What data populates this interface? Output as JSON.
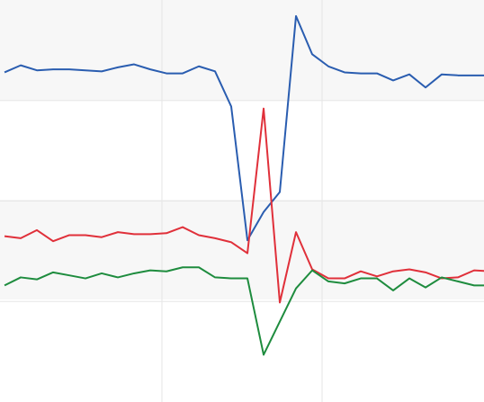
{
  "chart_data": {
    "type": "line",
    "x": [
      0,
      1,
      2,
      3,
      4,
      5,
      6,
      7,
      8,
      9,
      10,
      11,
      12,
      13,
      14,
      15,
      16,
      17,
      18,
      19,
      20,
      21,
      22,
      23,
      24,
      25,
      26,
      27,
      28,
      29,
      30
    ],
    "series": [
      {
        "color": "#2a5db0",
        "values": [
          3.28,
          3.35,
          3.3,
          3.31,
          3.31,
          3.3,
          3.29,
          3.33,
          3.36,
          3.31,
          3.27,
          3.27,
          3.34,
          3.29,
          2.94,
          1.61,
          1.89,
          2.09,
          3.84,
          3.46,
          3.34,
          3.28,
          3.27,
          3.27,
          3.2,
          3.26,
          3.13,
          3.26,
          3.25,
          3.25,
          3.25
        ]
      },
      {
        "color": "#e0303a",
        "values": [
          1.65,
          1.63,
          1.71,
          1.6,
          1.66,
          1.66,
          1.64,
          1.69,
          1.67,
          1.67,
          1.68,
          1.74,
          1.66,
          1.63,
          1.59,
          1.48,
          2.92,
          0.99,
          1.69,
          1.32,
          1.23,
          1.23,
          1.3,
          1.25,
          1.3,
          1.32,
          1.29,
          1.23,
          1.24,
          1.31,
          1.3
        ]
      },
      {
        "color": "#1e8c3e",
        "values": [
          1.16,
          1.24,
          1.22,
          1.29,
          1.26,
          1.23,
          1.28,
          1.24,
          1.28,
          1.31,
          1.3,
          1.34,
          1.34,
          1.24,
          1.23,
          1.23,
          0.47,
          0.8,
          1.13,
          1.31,
          1.2,
          1.18,
          1.23,
          1.23,
          1.11,
          1.23,
          1.14,
          1.24,
          1.2,
          1.16,
          1.16
        ]
      }
    ],
    "xlim": [
      -0.28,
      29.61
    ],
    "xticks": [
      9.72,
      19.61
    ],
    "ylim": [
      0,
      4
    ],
    "yticks": [
      1,
      2,
      3
    ],
    "grid": true
  }
}
